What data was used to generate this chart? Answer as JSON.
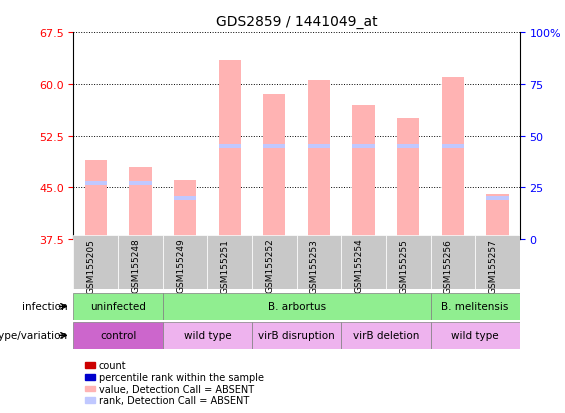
{
  "title": "GDS2859 / 1441049_at",
  "samples": [
    "GSM155205",
    "GSM155248",
    "GSM155249",
    "GSM155251",
    "GSM155252",
    "GSM155253",
    "GSM155254",
    "GSM155255",
    "GSM155256",
    "GSM155257"
  ],
  "bar_values": [
    49.0,
    48.0,
    46.0,
    63.5,
    58.5,
    60.5,
    57.0,
    55.0,
    61.0,
    44.0
  ],
  "bar_pct": [
    27,
    27,
    20,
    45,
    45,
    45,
    45,
    45,
    45,
    20
  ],
  "ylim": [
    37.5,
    67.5
  ],
  "yticks": [
    37.5,
    45.0,
    52.5,
    60.0,
    67.5
  ],
  "y2ticks": [
    0,
    25,
    50,
    75,
    100
  ],
  "bar_color_absent": "#FFB3B3",
  "rank_color_absent": "#C0C8FF",
  "bar_color_present": "#CC0000",
  "rank_color_present": "#0000CC",
  "sample_bg": "#C8C8C8",
  "infection_row": [
    {
      "label": "uninfected",
      "cols": [
        0,
        1
      ],
      "color": "#90EE90"
    },
    {
      "label": "B. arbortus",
      "cols": [
        2,
        3,
        4,
        5,
        6,
        7
      ],
      "color": "#90EE90"
    },
    {
      "label": "B. melitensis",
      "cols": [
        8,
        9
      ],
      "color": "#90EE90"
    }
  ],
  "genotype_row": [
    {
      "label": "control",
      "cols": [
        0,
        1
      ],
      "color": "#CC66CC"
    },
    {
      "label": "wild type",
      "cols": [
        2,
        3
      ],
      "color": "#EEB3EE"
    },
    {
      "label": "virB disruption",
      "cols": [
        4,
        5
      ],
      "color": "#EEB3EE"
    },
    {
      "label": "virB deletion",
      "cols": [
        6,
        7
      ],
      "color": "#EEB3EE"
    },
    {
      "label": "wild type",
      "cols": [
        8,
        9
      ],
      "color": "#EEB3EE"
    }
  ],
  "infection_label": "infection",
  "genotype_label": "genotype/variation",
  "legend_items": [
    {
      "marker": "s",
      "color": "#CC0000",
      "label": "count"
    },
    {
      "marker": "s",
      "color": "#0000CC",
      "label": "percentile rank within the sample"
    },
    {
      "marker": "s",
      "color": "#FFB3B3",
      "label": "value, Detection Call = ABSENT"
    },
    {
      "marker": "s",
      "color": "#C0C8FF",
      "label": "rank, Detection Call = ABSENT"
    }
  ]
}
